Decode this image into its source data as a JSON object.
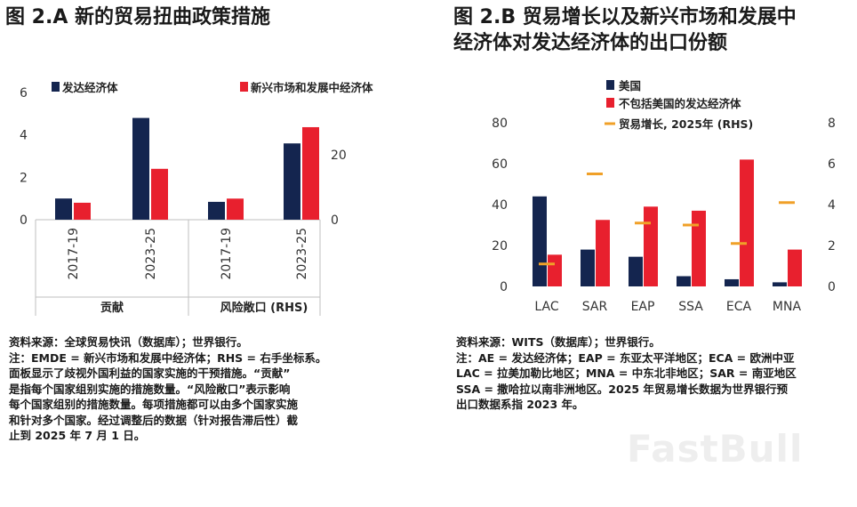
{
  "panelA": {
    "title": "图 2.A 新的贸易扭曲政策措施",
    "notes": [
      "资料来源：全球贸易快讯（数据库）；世界银行。",
      "注：EMDE = 新兴市场和发展中经济体；RHS = 右手坐标系。",
      "面板显示了歧视外国利益的国家实施的干预措施。“贡献”",
      "是指每个国家组别实施的措施数量。“风险敞口”表示影响",
      "每个国家组别的措施数量。每项措施都可以由多个国家实施",
      "和针对多个国家。经过调整后的数据（针对报告滞后性）截",
      "止到 2025 年 7 月 1 日。"
    ]
  },
  "panelB": {
    "title_lines": [
      "图 2.B 贸易增长以及新兴市场和发展中",
      "经济体对发达经济体的出口份额"
    ],
    "notes": [
      "资料来源：WITS（数据库）；世界银行。",
      "注：AE = 发达经济体；EAP = 东亚太平洋地区；ECA = 欧洲中亚",
      "LAC = 拉美加勒比地区；MNA = 中东北非地区；SAR = 南亚地区",
      "SSA = 撒哈拉以南非洲地区。2025 年贸易增长数据为世界银行预",
      "出口数据系指 2023 年。"
    ]
  },
  "watermark": "FastBull",
  "colors": {
    "navy": "#14254f",
    "red": "#e8202e",
    "orange": "#f0a028",
    "axis": "#bfbfbf"
  },
  "chart_data": [
    {
      "type": "bar",
      "groups": [
        {
          "label": "贡献",
          "axis": "left",
          "categories": [
            "2017-19",
            "2023-25"
          ]
        },
        {
          "label": "风险敞口 (RHS)",
          "axis": "right",
          "categories": [
            "2017-19",
            "2023-25"
          ]
        }
      ],
      "series": [
        {
          "name": "发达经济体",
          "color": "#14254f",
          "values": [
            1.0,
            4.8,
            5.5,
            23.5
          ]
        },
        {
          "name": "新兴市场和发展中经济体",
          "color": "#e8202e",
          "values": [
            0.8,
            2.4,
            6.5,
            28.5
          ]
        }
      ],
      "yleft": {
        "ticks": [
          0,
          2,
          4,
          6
        ],
        "lim": [
          0,
          6
        ]
      },
      "yright": {
        "ticks": [
          0,
          20
        ],
        "lim": [
          0,
          36
        ]
      },
      "legend_placement": "top",
      "grid": false
    },
    {
      "type": "bar",
      "categories": [
        "LAC",
        "SAR",
        "EAP",
        "SSA",
        "ECA",
        "MNA"
      ],
      "series": [
        {
          "name": "美国",
          "color": "#14254f",
          "type": "bar",
          "values": [
            44,
            18,
            14.5,
            5,
            3.5,
            2
          ]
        },
        {
          "name": "不包括美国的发达经济体",
          "color": "#e8202e",
          "type": "bar",
          "values": [
            15.5,
            32.5,
            39,
            37,
            62,
            18
          ]
        },
        {
          "name": "贸易增长, 2025年 (RHS)",
          "color": "#f0a028",
          "type": "marker",
          "axis": "right",
          "values": [
            1.1,
            5.5,
            3.1,
            3.0,
            2.1,
            4.1
          ]
        }
      ],
      "yleft": {
        "ticks": [
          0,
          20,
          40,
          60,
          80
        ],
        "lim": [
          0,
          80
        ]
      },
      "yright": {
        "ticks": [
          0,
          2,
          4,
          6,
          8
        ],
        "lim": [
          0,
          8
        ]
      },
      "legend_placement": "top",
      "grid": false
    }
  ]
}
